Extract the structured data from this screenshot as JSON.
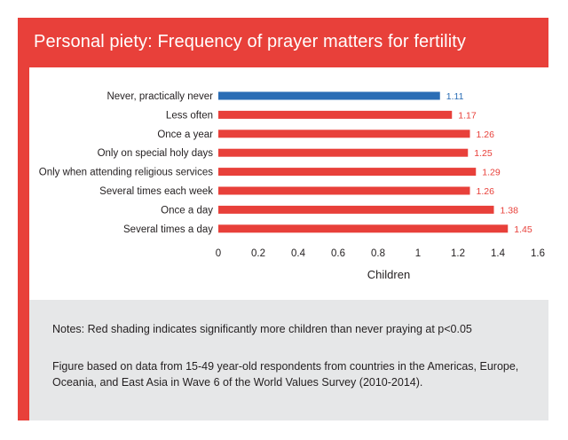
{
  "title": "Personal piety: Frequency of prayer matters for fertility",
  "colors": {
    "accent": "#e8403a",
    "baseline_bar": "#2a6db5",
    "significant_bar": "#e8403a",
    "notes_background": "#e6e7e8"
  },
  "chart_data": {
    "type": "bar",
    "orientation": "horizontal",
    "title": "Personal piety: Frequency of prayer matters for fertility",
    "xlabel": "Children",
    "ylabel": "",
    "xlim": [
      0,
      1.6
    ],
    "ticks": [
      "0",
      "0.2",
      "0.4",
      "0.6",
      "0.8",
      "1",
      "1.2",
      "1.4",
      "1.6"
    ],
    "tick_values": [
      0,
      0.2,
      0.4,
      0.6,
      0.8,
      1,
      1.2,
      1.4,
      1.6
    ],
    "grid": false,
    "categories": [
      "Never, practically never",
      "Less often",
      "Once a year",
      "Only on special holy days",
      "Only when attending religious services",
      "Several times each week",
      "Once a day",
      "Several times a day"
    ],
    "values": [
      1.11,
      1.17,
      1.26,
      1.25,
      1.29,
      1.26,
      1.38,
      1.45
    ],
    "value_labels": [
      "1.11",
      "1.17",
      "1.26",
      "1.25",
      "1.29",
      "1.26",
      "1.38",
      "1.45"
    ],
    "bar_colors": [
      "#2a6db5",
      "#e8403a",
      "#e8403a",
      "#e8403a",
      "#e8403a",
      "#e8403a",
      "#e8403a",
      "#e8403a"
    ]
  },
  "notes": {
    "significance": "Notes: Red shading indicates significantly more children than never praying at p<0.05",
    "source": "Figure based on data from 15-49 year-old respondents from countries in the Americas, Europe, Oceania, and East Asia in Wave 6 of the World Values Survey (2010-2014)."
  }
}
